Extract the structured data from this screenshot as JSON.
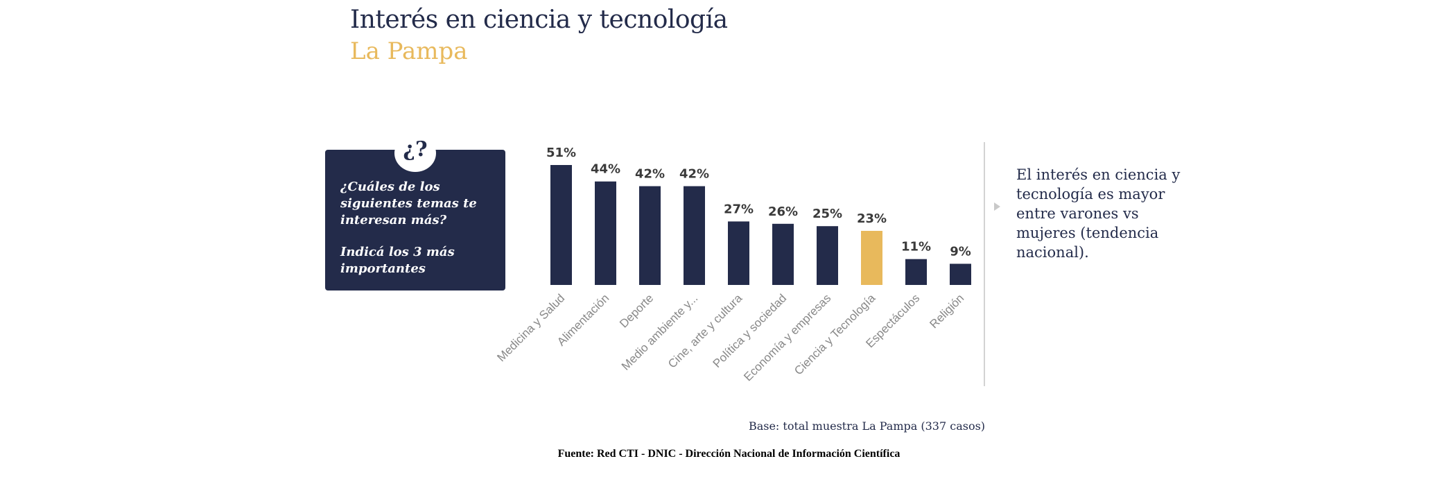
{
  "header": {
    "title": "Interés en ciencia y tecnología",
    "subtitle": "La Pampa"
  },
  "question": {
    "badge": "¿?",
    "line1": "¿Cuáles de los siguientes temas te interesan más?",
    "line2": "Indicá los 3 más importantes"
  },
  "note": {
    "text": "El interés en ciencia y tecnología es mayor entre varones vs mujeres (tendencia nacional)."
  },
  "footer": {
    "base": "Base: total muestra La Pampa (337 casos)",
    "source": "Fuente: Red CTI - DNIC - Dirección Nacional de Información Científica"
  },
  "colors": {
    "bar": "#232b4a",
    "highlight": "#e8b95c",
    "label": "#888888",
    "value": "#3a3a3a"
  },
  "chart_data": {
    "type": "bar",
    "categories": [
      "Medicina y Salud",
      "Alimentación",
      "Deporte",
      "Medio ambiente y...",
      "Cine, arte y cultura",
      "Política y sociedad",
      "Economía y empresas",
      "Ciencia y Tecnología",
      "Espectáculos",
      "Religión"
    ],
    "values": [
      51,
      44,
      42,
      42,
      27,
      26,
      25,
      23,
      11,
      9
    ],
    "value_labels": [
      "51%",
      "44%",
      "42%",
      "42%",
      "27%",
      "26%",
      "25%",
      "23%",
      "11%",
      "9%"
    ],
    "highlight_index": 7,
    "ylim": [
      0,
      51
    ],
    "grid": false,
    "legend": "none"
  }
}
